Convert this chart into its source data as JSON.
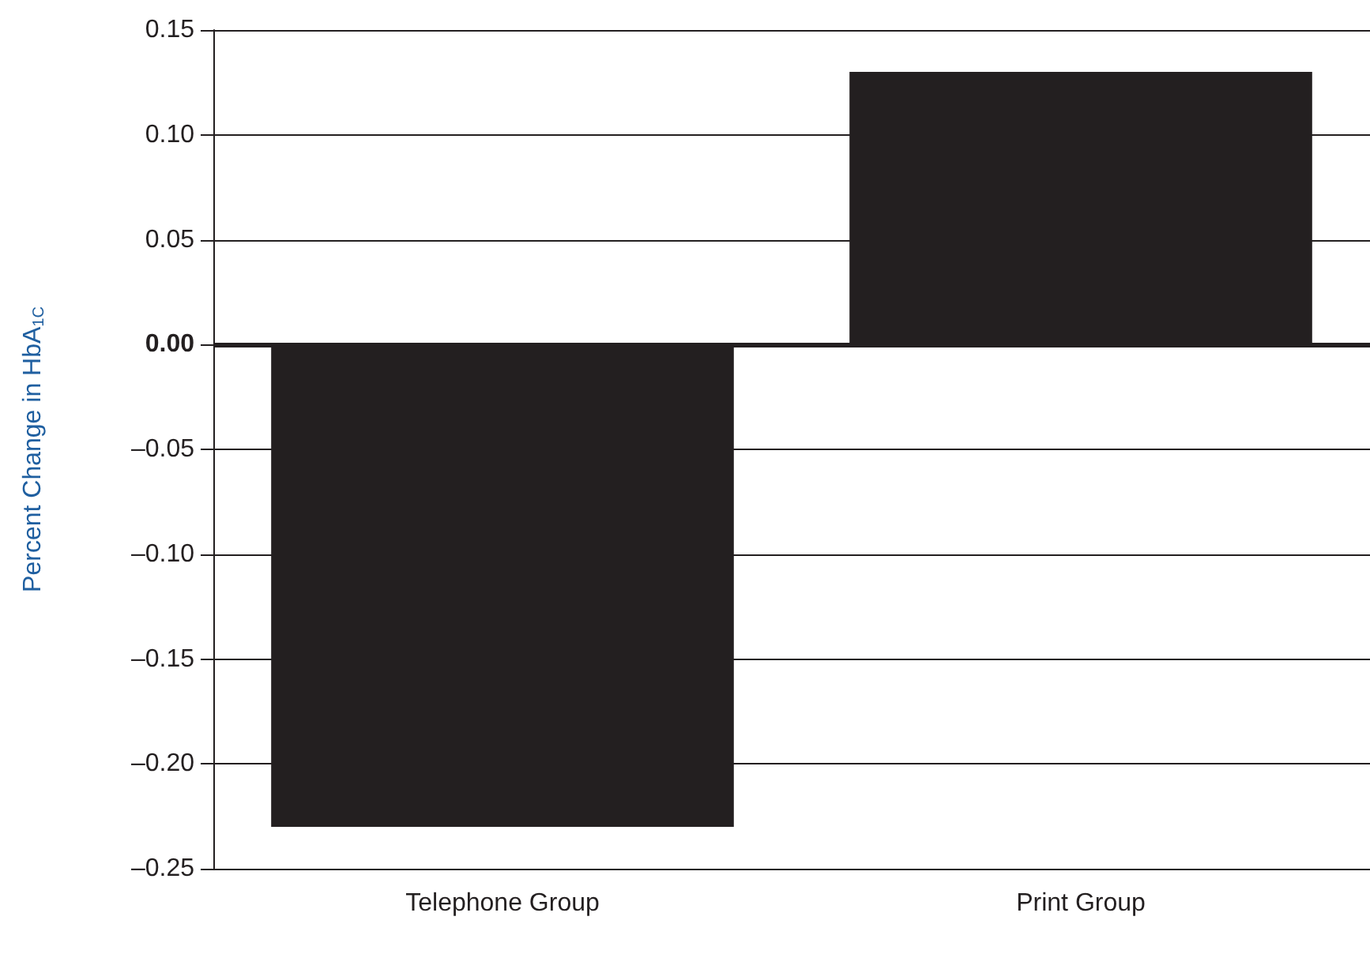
{
  "chart_data": {
    "type": "bar",
    "ylabel": "Percent Change in HbA$_{1C}$",
    "categories": [
      "Telephone Group",
      "Print Group"
    ],
    "values": [
      -0.23,
      0.13
    ],
    "color": "#231f20",
    "ylim": [
      -0.25,
      0.15
    ],
    "yticks": [
      {
        "value": -0.25,
        "label": "–0.25"
      },
      {
        "value": -0.2,
        "label": "–0.20"
      },
      {
        "value": -0.15,
        "label": "–0.15"
      },
      {
        "value": -0.1,
        "label": "–0.10"
      },
      {
        "value": -0.05,
        "label": "–0.05"
      },
      {
        "value": 0,
        "label": "0.00"
      },
      {
        "value": 0.05,
        "label": "0.05"
      },
      {
        "value": 0.1,
        "label": "0.10"
      },
      {
        "value": 0.15,
        "label": "0.15"
      }
    ],
    "grid": "y",
    "ref_lines": [
      {
        "axis": "y",
        "value": 0,
        "color": "#231f20"
      }
    ]
  }
}
